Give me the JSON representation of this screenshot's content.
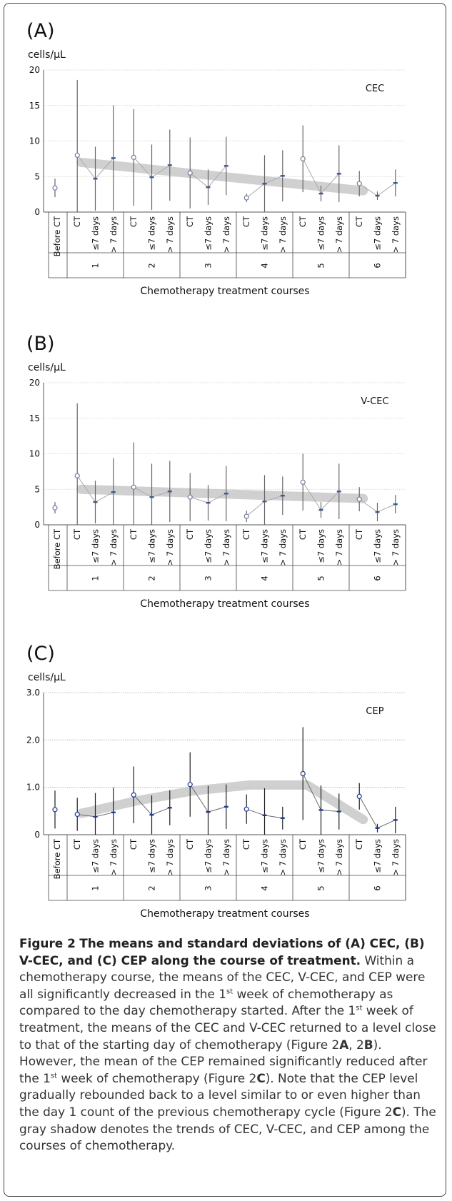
{
  "figure": {
    "caption_label": "Figure 2",
    "caption_title": "The means and standard deviations of (A) CEC, (B) V-CEC, and (C) CEP along the course of treatment.",
    "caption_parts": [
      " Within a chemotherapy course, the means of the CEC, V-CEC, and CEP were all significantly decreased in the 1",
      "st",
      " week of chemotherapy as compared to the day chemotherapy started. After the 1",
      "st",
      " week of treatment, the means of the CEC and V-CEC returned to a level close to that of the starting day of chemotherapy (Figure 2",
      "A",
      ", 2",
      "B",
      "). However, the mean of the CEP remained significantly reduced after the 1",
      "st",
      " week of chemotherapy (Figure 2",
      "C",
      "). Note that the CEP level gradually rebounded back to a level similar to or even higher than the day 1 count of the previous chemotherapy cycle (Figure 2",
      "C",
      "). The gray shadow denotes the trends of CEC, V-CEC, and CEP among the courses of chemotherapy."
    ]
  },
  "chart_data": [
    {
      "type": "scatter",
      "panel_label": "(A)",
      "ylabel": "cells/µL",
      "series_label": "CEC",
      "xlabel": "Chemotherapy treatment courses",
      "ylim": [
        0,
        20
      ],
      "yticks": [
        "0",
        "5",
        "10",
        "15",
        "20"
      ],
      "ytick_values": [
        0,
        5,
        10,
        15,
        20
      ],
      "grid": true,
      "baseline_label": "Before CT",
      "phase_labels": [
        "CT",
        "≤7 days",
        "> 7 days"
      ],
      "courses": [
        "1",
        "2",
        "3",
        "4",
        "5",
        "6"
      ],
      "baseline": {
        "mean": 3.4,
        "sd": 1.3
      },
      "points": [
        {
          "course": 1,
          "mean": 8.0,
          "sd": 10.6
        },
        {
          "course": 1,
          "mean": 4.7,
          "sd": 4.5
        },
        {
          "course": 1,
          "mean": 7.6,
          "sd": 7.4
        },
        {
          "course": 2,
          "mean": 7.7,
          "sd": 6.8
        },
        {
          "course": 2,
          "mean": 4.9,
          "sd": 4.6
        },
        {
          "course": 2,
          "mean": 6.6,
          "sd": 5.0
        },
        {
          "course": 3,
          "mean": 5.5,
          "sd": 5.0
        },
        {
          "course": 3,
          "mean": 3.5,
          "sd": 2.5
        },
        {
          "course": 3,
          "mean": 6.5,
          "sd": 4.1
        },
        {
          "course": 4,
          "mean": 2.0,
          "sd": 0.6
        },
        {
          "course": 4,
          "mean": 4.0,
          "sd": 4.0
        },
        {
          "course": 4,
          "mean": 5.1,
          "sd": 3.6
        },
        {
          "course": 5,
          "mean": 7.5,
          "sd": 4.7
        },
        {
          "course": 5,
          "mean": 2.6,
          "sd": 1.1
        },
        {
          "course": 5,
          "mean": 5.4,
          "sd": 4.0
        },
        {
          "course": 6,
          "mean": 4.0,
          "sd": 1.8
        },
        {
          "course": 6,
          "mean": 2.3,
          "sd": 0.6
        },
        {
          "course": 6,
          "mean": 4.1,
          "sd": 1.9
        }
      ],
      "trend": [
        [
          1,
          7.0
        ],
        [
          6,
          3.0
        ]
      ]
    },
    {
      "type": "scatter",
      "panel_label": "(B)",
      "ylabel": "cells/µL",
      "series_label": "V-CEC",
      "xlabel": "Chemotherapy treatment courses",
      "ylim": [
        0,
        20
      ],
      "yticks": [
        "0",
        "5",
        "10",
        "15",
        "20"
      ],
      "ytick_values": [
        0,
        5,
        10,
        15,
        20
      ],
      "grid": true,
      "baseline_label": "Before CT",
      "phase_labels": [
        "CT",
        "≤7 days",
        "> 7 days"
      ],
      "courses": [
        "1",
        "2",
        "3",
        "4",
        "5",
        "6"
      ],
      "baseline": {
        "mean": 2.4,
        "sd": 0.8
      },
      "points": [
        {
          "course": 1,
          "mean": 6.9,
          "sd": 10.2
        },
        {
          "course": 1,
          "mean": 3.2,
          "sd": 3.0
        },
        {
          "course": 1,
          "mean": 4.6,
          "sd": 4.8
        },
        {
          "course": 2,
          "mean": 5.3,
          "sd": 6.3
        },
        {
          "course": 2,
          "mean": 3.9,
          "sd": 4.7
        },
        {
          "course": 2,
          "mean": 4.7,
          "sd": 4.3
        },
        {
          "course": 3,
          "mean": 3.9,
          "sd": 3.4
        },
        {
          "course": 3,
          "mean": 3.1,
          "sd": 2.5
        },
        {
          "course": 3,
          "mean": 4.4,
          "sd": 3.9
        },
        {
          "course": 4,
          "mean": 1.2,
          "sd": 0.8
        },
        {
          "course": 4,
          "mean": 3.3,
          "sd": 3.7
        },
        {
          "course": 4,
          "mean": 4.1,
          "sd": 2.7
        },
        {
          "course": 5,
          "mean": 6.0,
          "sd": 4.0
        },
        {
          "course": 5,
          "mean": 2.1,
          "sd": 1.1
        },
        {
          "course": 5,
          "mean": 4.7,
          "sd": 3.9
        },
        {
          "course": 6,
          "mean": 3.6,
          "sd": 1.7
        },
        {
          "course": 6,
          "mean": 1.8,
          "sd": 1.3
        },
        {
          "course": 6,
          "mean": 2.9,
          "sd": 1.3
        }
      ],
      "trend": [
        [
          1,
          5.0
        ],
        [
          6,
          3.7
        ]
      ]
    },
    {
      "type": "scatter",
      "panel_label": "(C)",
      "ylabel": "cells/µL",
      "series_label": "CEP",
      "xlabel": "Chemotherapy treatment courses",
      "ylim": [
        0,
        3
      ],
      "yticks": [
        "0",
        "1.0",
        "2.0",
        "3.0"
      ],
      "ytick_values": [
        0,
        1,
        2,
        3
      ],
      "grid": true,
      "baseline_label": "Before CT",
      "phase_labels": [
        "CT",
        "≤7 days",
        "> 7 days"
      ],
      "courses": [
        "1",
        "2",
        "3",
        "4",
        "5",
        "6"
      ],
      "baseline": {
        "mean": 0.53,
        "sd": 0.4
      },
      "points": [
        {
          "course": 1,
          "mean": 0.43,
          "sd": 0.35
        },
        {
          "course": 1,
          "mean": 0.38,
          "sd": 0.5
        },
        {
          "course": 1,
          "mean": 0.47,
          "sd": 0.52
        },
        {
          "course": 2,
          "mean": 0.84,
          "sd": 0.6
        },
        {
          "course": 2,
          "mean": 0.42,
          "sd": 0.41
        },
        {
          "course": 2,
          "mean": 0.57,
          "sd": 0.37
        },
        {
          "course": 3,
          "mean": 1.06,
          "sd": 0.68
        },
        {
          "course": 3,
          "mean": 0.48,
          "sd": 0.55
        },
        {
          "course": 3,
          "mean": 0.59,
          "sd": 0.47
        },
        {
          "course": 4,
          "mean": 0.54,
          "sd": 0.31
        },
        {
          "course": 4,
          "mean": 0.41,
          "sd": 0.57
        },
        {
          "course": 4,
          "mean": 0.35,
          "sd": 0.24
        },
        {
          "course": 5,
          "mean": 1.29,
          "sd": 0.98
        },
        {
          "course": 5,
          "mean": 0.52,
          "sd": 0.52
        },
        {
          "course": 5,
          "mean": 0.49,
          "sd": 0.38
        },
        {
          "course": 6,
          "mean": 0.81,
          "sd": 0.28
        },
        {
          "course": 6,
          "mean": 0.14,
          "sd": 0.09
        },
        {
          "course": 6,
          "mean": 0.31,
          "sd": 0.28
        }
      ],
      "trend": [
        [
          1,
          0.45
        ],
        [
          2,
          0.72
        ],
        [
          3,
          0.93
        ],
        [
          4,
          1.05
        ],
        [
          5,
          1.05
        ],
        [
          6,
          0.32
        ]
      ]
    }
  ]
}
